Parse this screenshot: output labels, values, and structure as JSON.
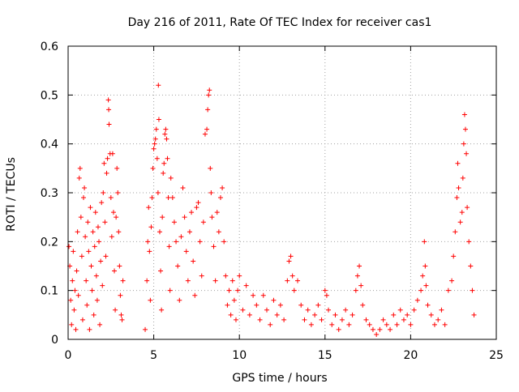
{
  "chart_data": {
    "type": "scatter",
    "title": "Day 216 of 2011, Rate Of TEC Index for receiver cas1",
    "xlabel": "GPS time / hours",
    "ylabel": "ROTI / TECUs",
    "xlim": [
      0,
      25
    ],
    "ylim": [
      0,
      0.6
    ],
    "xticks": [
      0,
      5,
      10,
      15,
      20,
      25
    ],
    "xtick_labels": [
      "0",
      "5",
      "10",
      "15",
      "20",
      "25"
    ],
    "yticks": [
      0,
      0.1,
      0.2,
      0.3,
      0.4,
      0.5,
      0.6
    ],
    "ytick_labels": [
      "0",
      "0.1",
      "0.2",
      "0.3",
      "0.4",
      "0.5",
      "0.6"
    ],
    "grid": true,
    "marker": "+",
    "color": "#ff0000",
    "series": [
      {
        "name": "ROTI",
        "points": [
          [
            0.05,
            0.19
          ],
          [
            0.1,
            0.15
          ],
          [
            0.15,
            0.08
          ],
          [
            0.2,
            0.03
          ],
          [
            0.25,
            0.12
          ],
          [
            0.3,
            0.18
          ],
          [
            0.35,
            0.06
          ],
          [
            0.4,
            0.1
          ],
          [
            0.45,
            0.02
          ],
          [
            0.5,
            0.14
          ],
          [
            0.55,
            0.22
          ],
          [
            0.6,
            0.09
          ],
          [
            0.65,
            0.33
          ],
          [
            0.7,
            0.35
          ],
          [
            0.75,
            0.25
          ],
          [
            0.8,
            0.17
          ],
          [
            0.85,
            0.04
          ],
          [
            0.9,
            0.29
          ],
          [
            0.95,
            0.31
          ],
          [
            1.0,
            0.21
          ],
          [
            1.05,
            0.12
          ],
          [
            1.1,
            0.07
          ],
          [
            1.15,
            0.24
          ],
          [
            1.2,
            0.18
          ],
          [
            1.25,
            0.02
          ],
          [
            1.3,
            0.27
          ],
          [
            1.35,
            0.15
          ],
          [
            1.4,
            0.1
          ],
          [
            1.45,
            0.22
          ],
          [
            1.5,
            0.05
          ],
          [
            1.55,
            0.19
          ],
          [
            1.6,
            0.26
          ],
          [
            1.65,
            0.13
          ],
          [
            1.7,
            0.08
          ],
          [
            1.75,
            0.23
          ],
          [
            1.8,
            0.2
          ],
          [
            1.85,
            0.03
          ],
          [
            1.9,
            0.16
          ],
          [
            1.95,
            0.28
          ],
          [
            2.0,
            0.11
          ],
          [
            2.05,
            0.3
          ],
          [
            2.1,
            0.36
          ],
          [
            2.15,
            0.24
          ],
          [
            2.2,
            0.17
          ],
          [
            2.25,
            0.34
          ],
          [
            2.3,
            0.37
          ],
          [
            2.35,
            0.49
          ],
          [
            2.37,
            0.47
          ],
          [
            2.39,
            0.44
          ],
          [
            2.45,
            0.38
          ],
          [
            2.5,
            0.29
          ],
          [
            2.55,
            0.21
          ],
          [
            2.6,
            0.38
          ],
          [
            2.65,
            0.26
          ],
          [
            2.7,
            0.14
          ],
          [
            2.75,
            0.06
          ],
          [
            2.8,
            0.25
          ],
          [
            2.85,
            0.35
          ],
          [
            2.9,
            0.3
          ],
          [
            2.95,
            0.22
          ],
          [
            3.0,
            0.15
          ],
          [
            3.05,
            0.09
          ],
          [
            3.1,
            0.05
          ],
          [
            3.15,
            0.04
          ],
          [
            3.2,
            0.12
          ],
          [
            4.5,
            0.02
          ],
          [
            4.6,
            0.12
          ],
          [
            4.65,
            0.2
          ],
          [
            4.7,
            0.27
          ],
          [
            4.75,
            0.18
          ],
          [
            4.8,
            0.08
          ],
          [
            4.85,
            0.23
          ],
          [
            4.9,
            0.29
          ],
          [
            4.95,
            0.35
          ],
          [
            5.0,
            0.39
          ],
          [
            5.05,
            0.4
          ],
          [
            5.1,
            0.41
          ],
          [
            5.15,
            0.43
          ],
          [
            5.2,
            0.37
          ],
          [
            5.25,
            0.3
          ],
          [
            5.27,
            0.52
          ],
          [
            5.3,
            0.45
          ],
          [
            5.35,
            0.22
          ],
          [
            5.4,
            0.14
          ],
          [
            5.45,
            0.06
          ],
          [
            5.5,
            0.25
          ],
          [
            5.55,
            0.34
          ],
          [
            5.6,
            0.36
          ],
          [
            5.65,
            0.42
          ],
          [
            5.7,
            0.43
          ],
          [
            5.75,
            0.41
          ],
          [
            5.8,
            0.37
          ],
          [
            5.85,
            0.29
          ],
          [
            5.9,
            0.19
          ],
          [
            5.95,
            0.1
          ],
          [
            6.0,
            0.33
          ],
          [
            6.1,
            0.29
          ],
          [
            6.2,
            0.24
          ],
          [
            6.3,
            0.2
          ],
          [
            6.4,
            0.15
          ],
          [
            6.5,
            0.08
          ],
          [
            6.6,
            0.21
          ],
          [
            6.7,
            0.31
          ],
          [
            6.8,
            0.25
          ],
          [
            6.9,
            0.18
          ],
          [
            7.0,
            0.12
          ],
          [
            7.1,
            0.22
          ],
          [
            7.2,
            0.26
          ],
          [
            7.3,
            0.16
          ],
          [
            7.4,
            0.09
          ],
          [
            7.5,
            0.27
          ],
          [
            7.6,
            0.28
          ],
          [
            7.7,
            0.2
          ],
          [
            7.8,
            0.13
          ],
          [
            7.9,
            0.24
          ],
          [
            8.0,
            0.42
          ],
          [
            8.1,
            0.43
          ],
          [
            8.15,
            0.47
          ],
          [
            8.2,
            0.5
          ],
          [
            8.25,
            0.51
          ],
          [
            8.3,
            0.35
          ],
          [
            8.35,
            0.3
          ],
          [
            8.4,
            0.25
          ],
          [
            8.5,
            0.19
          ],
          [
            8.6,
            0.12
          ],
          [
            8.7,
            0.26
          ],
          [
            8.8,
            0.22
          ],
          [
            8.9,
            0.29
          ],
          [
            9.0,
            0.31
          ],
          [
            9.1,
            0.2
          ],
          [
            9.2,
            0.13
          ],
          [
            9.3,
            0.07
          ],
          [
            9.4,
            0.1
          ],
          [
            9.5,
            0.05
          ],
          [
            9.6,
            0.12
          ],
          [
            9.7,
            0.08
          ],
          [
            9.8,
            0.04
          ],
          [
            9.9,
            0.1
          ],
          [
            10.0,
            0.13
          ],
          [
            10.2,
            0.06
          ],
          [
            10.4,
            0.11
          ],
          [
            10.6,
            0.05
          ],
          [
            10.8,
            0.09
          ],
          [
            11.0,
            0.07
          ],
          [
            11.2,
            0.04
          ],
          [
            11.4,
            0.09
          ],
          [
            11.6,
            0.06
          ],
          [
            11.8,
            0.03
          ],
          [
            12.0,
            0.08
          ],
          [
            12.2,
            0.05
          ],
          [
            12.4,
            0.07
          ],
          [
            12.6,
            0.04
          ],
          [
            12.8,
            0.12
          ],
          [
            12.9,
            0.16
          ],
          [
            13.0,
            0.17
          ],
          [
            13.1,
            0.13
          ],
          [
            13.2,
            0.1
          ],
          [
            13.4,
            0.12
          ],
          [
            13.6,
            0.07
          ],
          [
            13.8,
            0.04
          ],
          [
            14.0,
            0.06
          ],
          [
            14.2,
            0.03
          ],
          [
            14.4,
            0.05
          ],
          [
            14.6,
            0.07
          ],
          [
            14.8,
            0.04
          ],
          [
            15.0,
            0.1
          ],
          [
            15.1,
            0.09
          ],
          [
            15.2,
            0.06
          ],
          [
            15.4,
            0.03
          ],
          [
            15.6,
            0.05
          ],
          [
            15.8,
            0.02
          ],
          [
            16.0,
            0.04
          ],
          [
            16.2,
            0.06
          ],
          [
            16.4,
            0.03
          ],
          [
            16.6,
            0.05
          ],
          [
            16.8,
            0.1
          ],
          [
            16.9,
            0.13
          ],
          [
            17.0,
            0.15
          ],
          [
            17.1,
            0.11
          ],
          [
            17.2,
            0.07
          ],
          [
            17.4,
            0.04
          ],
          [
            17.6,
            0.03
          ],
          [
            17.8,
            0.02
          ],
          [
            18.0,
            0.01
          ],
          [
            18.2,
            0.02
          ],
          [
            18.4,
            0.04
          ],
          [
            18.6,
            0.03
          ],
          [
            18.8,
            0.02
          ],
          [
            19.0,
            0.05
          ],
          [
            19.2,
            0.03
          ],
          [
            19.4,
            0.06
          ],
          [
            19.6,
            0.04
          ],
          [
            19.8,
            0.05
          ],
          [
            20.0,
            0.03
          ],
          [
            20.2,
            0.06
          ],
          [
            20.4,
            0.08
          ],
          [
            20.6,
            0.1
          ],
          [
            20.7,
            0.13
          ],
          [
            20.8,
            0.2
          ],
          [
            20.85,
            0.15
          ],
          [
            20.9,
            0.11
          ],
          [
            21.0,
            0.07
          ],
          [
            21.2,
            0.05
          ],
          [
            21.4,
            0.03
          ],
          [
            21.6,
            0.04
          ],
          [
            21.8,
            0.06
          ],
          [
            22.0,
            0.03
          ],
          [
            22.2,
            0.1
          ],
          [
            22.4,
            0.12
          ],
          [
            22.5,
            0.17
          ],
          [
            22.6,
            0.22
          ],
          [
            22.7,
            0.29
          ],
          [
            22.75,
            0.36
          ],
          [
            22.8,
            0.31
          ],
          [
            22.9,
            0.24
          ],
          [
            23.0,
            0.26
          ],
          [
            23.05,
            0.33
          ],
          [
            23.1,
            0.4
          ],
          [
            23.15,
            0.46
          ],
          [
            23.2,
            0.43
          ],
          [
            23.25,
            0.38
          ],
          [
            23.3,
            0.27
          ],
          [
            23.4,
            0.2
          ],
          [
            23.5,
            0.15
          ],
          [
            23.6,
            0.1
          ],
          [
            23.7,
            0.05
          ]
        ]
      }
    ]
  }
}
